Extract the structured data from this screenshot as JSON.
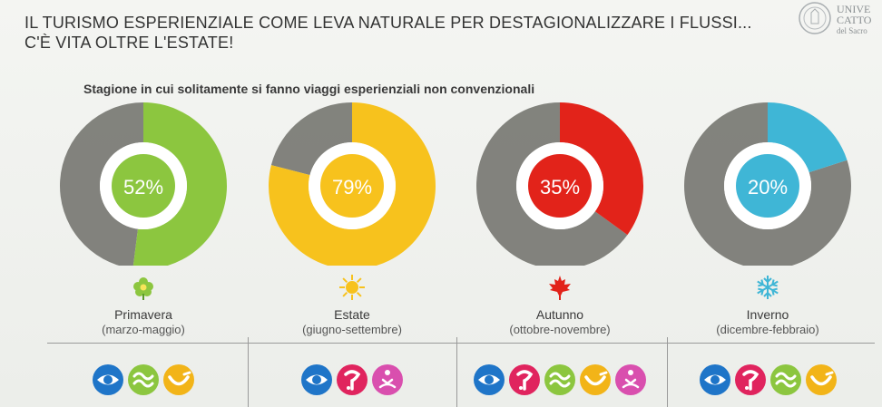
{
  "title": {
    "line1": "IL TURISMO ESPERIENZIALE COME LEVA NATURALE PER DESTAGIONALIZZARE I FLUSSI...",
    "line2": "C'È VITA OLTRE L'ESTATE!"
  },
  "logo": {
    "line1": "UNIVE",
    "line2": "CATTO",
    "line3": "del Sacro"
  },
  "chart_data": {
    "type": "pie",
    "title": "Stagione in cui solitamente si fanno viaggi esperienziali non convenzionali",
    "units": "%",
    "charts": [
      {
        "season": "Primavera",
        "range": "(marzo-maggio)",
        "value": 52,
        "label": "52%",
        "color": "#8cc63f",
        "icon": "flower-icon",
        "types": [
          "eye-icon",
          "wave-icon",
          "smile-icon"
        ]
      },
      {
        "season": "Estate",
        "range": "(giugno-settembre)",
        "value": 79,
        "label": "79%",
        "color": "#f7c21d",
        "icon": "sun-icon",
        "types": [
          "eye-icon",
          "hand-icon",
          "lotus-icon"
        ]
      },
      {
        "season": "Autunno",
        "range": "(ottobre-novembre)",
        "value": 35,
        "label": "35%",
        "color": "#e2231a",
        "icon": "maple-leaf-icon",
        "types": [
          "eye-icon",
          "hand-icon",
          "wave-icon",
          "smile-icon",
          "lotus-icon"
        ]
      },
      {
        "season": "Inverno",
        "range": "(dicembre-febbraio)",
        "value": 20,
        "label": "20%",
        "color": "#3fb6d6",
        "icon": "snowflake-icon",
        "types": [
          "eye-icon",
          "hand-icon",
          "wave-icon",
          "smile-icon"
        ]
      }
    ]
  },
  "colors": {
    "eye": "#1f75c8",
    "hand": "#e0245e",
    "wave": "#8cc63f",
    "smile": "#f2b418",
    "lotus": "#d94fae",
    "remainder": "#6e6e68"
  }
}
